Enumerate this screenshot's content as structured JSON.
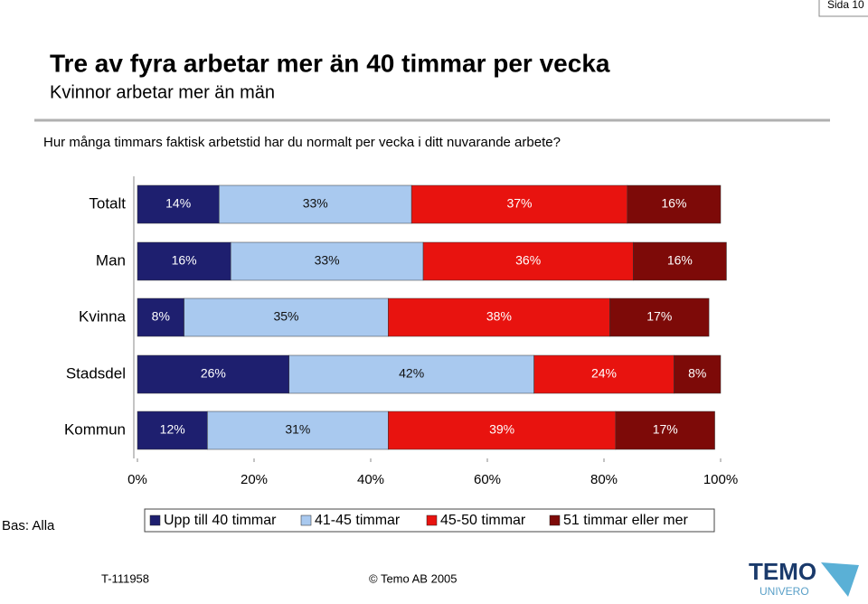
{
  "page_label": "Sida 10",
  "header": {
    "title": "Tre av fyra arbetar mer än 40 timmar per vecka",
    "subtitle": "Kvinnor arbetar mer än män",
    "question": "Hur många timmars faktisk arbetstid har du normalt per vecka i ditt nuvarande arbete?"
  },
  "base_note": "Bas: Alla",
  "footer": {
    "code": "T-111958",
    "copyright": "© Temo AB 2005",
    "logo": "TEMO",
    "logo_sub": "UNIVERO"
  },
  "chart_data": {
    "type": "stacked-bar-horizontal",
    "categories": [
      "Totalt",
      "Man",
      "Kvinna",
      "Stadsdel",
      "Kommun"
    ],
    "series": [
      {
        "name": "Upp till 40 timmar",
        "color": "#1e1f6f",
        "values": [
          14,
          16,
          8,
          26,
          12
        ],
        "value_labels": [
          "14%",
          "16%",
          "8%",
          "26%",
          "12%"
        ]
      },
      {
        "name": "41-45 timmar",
        "color": "#a9c9ef",
        "values": [
          33,
          33,
          35,
          42,
          31
        ],
        "value_labels": [
          "33%",
          "33%",
          "35%",
          "42%",
          "31%"
        ]
      },
      {
        "name": "45-50 timmar",
        "color": "#e8130f",
        "values": [
          37,
          36,
          38,
          24,
          39
        ],
        "value_labels": [
          "37%",
          "36%",
          "38%",
          "24%",
          "39%"
        ]
      },
      {
        "name": "51 timmar eller mer",
        "color": "#7d0a08",
        "values": [
          16,
          16,
          17,
          8,
          17
        ],
        "value_labels": [
          "16%",
          "16%",
          "17%",
          "8%",
          "17%"
        ]
      }
    ],
    "xlim": [
      0,
      100
    ],
    "xticks": [
      {
        "value": 0,
        "label": "0%"
      },
      {
        "value": 20,
        "label": "20%"
      },
      {
        "value": 40,
        "label": "40%"
      },
      {
        "value": 60,
        "label": "60%"
      },
      {
        "value": 80,
        "label": "80%"
      },
      {
        "value": 100,
        "label": "100%"
      }
    ],
    "grid": false,
    "legend": "bottom"
  }
}
